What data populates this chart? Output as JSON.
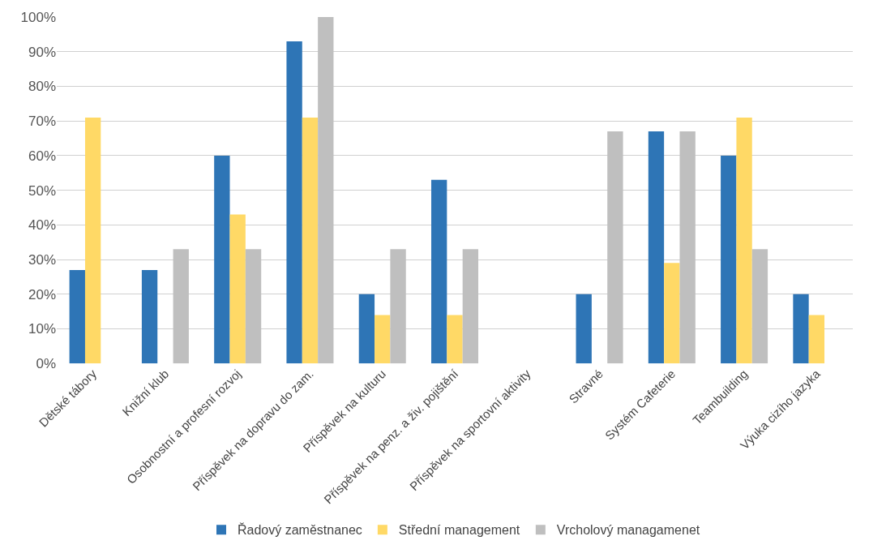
{
  "chart_data": {
    "type": "bar",
    "categories": [
      "Dětské tábory",
      "Knižní klub",
      "Osobnostní a profesní rozvoj",
      "Příspěvek na dopravu do zam.",
      "Příspěvek na kulturu",
      "Příspěvek na penz. a živ. pojištění",
      "Příspěvek na sportovní aktivity",
      "Stravné",
      "Systém Cafeterie",
      "Teambuilding",
      "Výuka cizího jazyka"
    ],
    "series": [
      {
        "name": "Řadový zaměstnanec",
        "color": "#2e75b6",
        "values": [
          27,
          27,
          60,
          93,
          20,
          53,
          0,
          20,
          67,
          60,
          20
        ]
      },
      {
        "name": "Střední management",
        "color": "#ffd966",
        "values": [
          71,
          0,
          43,
          71,
          14,
          14,
          0,
          0,
          29,
          71,
          14
        ]
      },
      {
        "name": "Vrcholový managamenet",
        "color": "#bfbfbf",
        "values": [
          0,
          33,
          33,
          100,
          33,
          33,
          0,
          67,
          67,
          33,
          0
        ]
      }
    ],
    "ylim": [
      0,
      100
    ],
    "yticks": [
      {
        "value": 0,
        "label": "0%"
      },
      {
        "value": 10,
        "label": "10%"
      },
      {
        "value": 20,
        "label": "20%"
      },
      {
        "value": 30,
        "label": "30%"
      },
      {
        "value": 40,
        "label": "40%"
      },
      {
        "value": 50,
        "label": "50%"
      },
      {
        "value": 60,
        "label": "60%"
      },
      {
        "value": 70,
        "label": "70%"
      },
      {
        "value": 80,
        "label": "80%"
      },
      {
        "value": 90,
        "label": "90%"
      },
      {
        "value": 100,
        "label": "100%"
      }
    ],
    "grid": "y",
    "legend": "bottom"
  }
}
